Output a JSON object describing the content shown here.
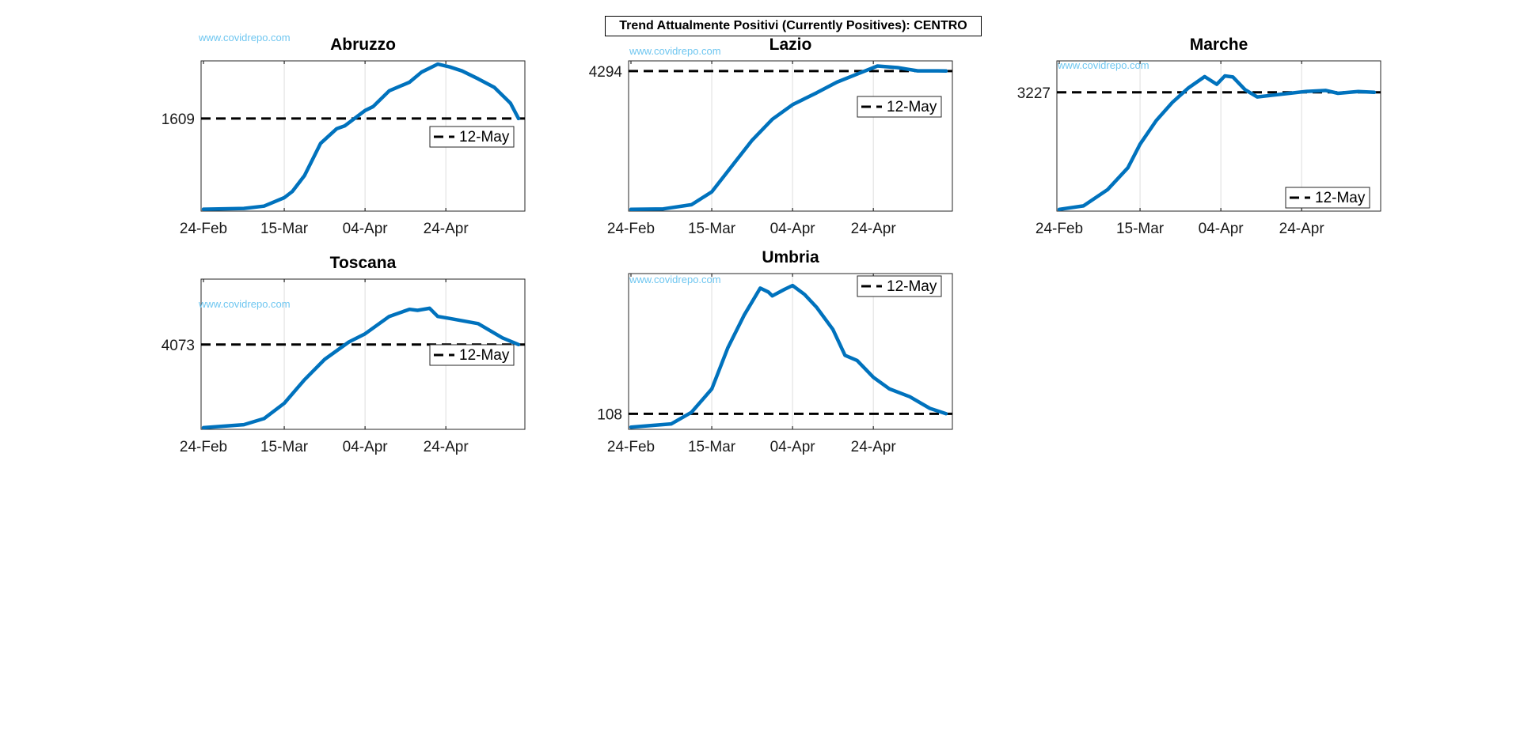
{
  "figure": {
    "suptitle": "Trend Attualmente Positivi (Currently Positives): CENTRO",
    "watermark": "www.covidrepo.com",
    "colors": {
      "line": "#0072BD",
      "reference": "#000000",
      "watermark": "#6EC6F0",
      "grid": "#DDDDDD"
    }
  },
  "chart_data": [
    {
      "type": "line",
      "title": "Abruzzo",
      "x_tick_labels": [
        "24-Feb",
        "15-Mar",
        "04-Apr",
        "24-Apr"
      ],
      "x_range": [
        "2020-02-24",
        "2020-05-12"
      ],
      "reference_value": 1609,
      "reference_label": "12-May",
      "legend_position": "right",
      "grid": "vertical",
      "ylim": [
        0,
        2600
      ],
      "series": [
        {
          "x": [
            "2020-02-24",
            "2020-03-05",
            "2020-03-10",
            "2020-03-15",
            "2020-03-17",
            "2020-03-20",
            "2020-03-24",
            "2020-03-28",
            "2020-03-30",
            "2020-04-04",
            "2020-04-06",
            "2020-04-10",
            "2020-04-15",
            "2020-04-18",
            "2020-04-22",
            "2020-04-25",
            "2020-04-28",
            "2020-05-02",
            "2020-05-06",
            "2020-05-10",
            "2020-05-12"
          ],
          "y": [
            5,
            20,
            60,
            210,
            320,
            600,
            1170,
            1430,
            1480,
            1750,
            1820,
            2100,
            2250,
            2430,
            2570,
            2520,
            2450,
            2310,
            2160,
            1880,
            1609
          ]
        }
      ]
    },
    {
      "type": "line",
      "title": "Lazio",
      "x_tick_labels": [
        "24-Feb",
        "15-Mar",
        "04-Apr",
        "24-Apr"
      ],
      "x_range": [
        "2020-02-24",
        "2020-05-12"
      ],
      "reference_value": 4294,
      "reference_label": "12-May",
      "legend_position": "right",
      "grid": "vertical",
      "ylim": [
        0,
        4560
      ],
      "series": [
        {
          "x": [
            "2020-02-24",
            "2020-03-03",
            "2020-03-10",
            "2020-03-15",
            "2020-03-20",
            "2020-03-25",
            "2020-03-30",
            "2020-04-04",
            "2020-04-10",
            "2020-04-15",
            "2020-04-20",
            "2020-04-25",
            "2020-04-30",
            "2020-05-05",
            "2020-05-10",
            "2020-05-12"
          ],
          "y": [
            5,
            20,
            150,
            550,
            1350,
            2150,
            2800,
            3250,
            3620,
            3950,
            4200,
            4450,
            4400,
            4300,
            4300,
            4294
          ]
        }
      ]
    },
    {
      "type": "line",
      "title": "Marche",
      "x_tick_labels": [
        "24-Feb",
        "15-Mar",
        "04-Apr",
        "24-Apr"
      ],
      "x_range": [
        "2020-02-24",
        "2020-05-12"
      ],
      "reference_value": 3227,
      "reference_label": "12-May",
      "legend_position": "bottom-right",
      "grid": "vertical",
      "ylim": [
        0,
        4050
      ],
      "series": [
        {
          "x": [
            "2020-02-24",
            "2020-03-01",
            "2020-03-07",
            "2020-03-12",
            "2020-03-15",
            "2020-03-19",
            "2020-03-23",
            "2020-03-27",
            "2020-03-31",
            "2020-04-03",
            "2020-04-05",
            "2020-04-07",
            "2020-04-10",
            "2020-04-13",
            "2020-04-17",
            "2020-04-21",
            "2020-04-25",
            "2020-04-30",
            "2020-05-03",
            "2020-05-08",
            "2020-05-12"
          ],
          "y": [
            5,
            100,
            550,
            1150,
            1800,
            2450,
            2950,
            3350,
            3660,
            3450,
            3680,
            3650,
            3300,
            3100,
            3150,
            3200,
            3250,
            3280,
            3200,
            3250,
            3227
          ]
        }
      ]
    },
    {
      "type": "line",
      "title": "Toscana",
      "x_tick_labels": [
        "24-Feb",
        "15-Mar",
        "04-Apr",
        "24-Apr"
      ],
      "x_range": [
        "2020-02-24",
        "2020-05-12"
      ],
      "reference_value": 4073,
      "reference_label": "12-May",
      "legend_position": "right",
      "grid": "vertical",
      "ylim": [
        0,
        7200
      ],
      "series": [
        {
          "x": [
            "2020-02-24",
            "2020-03-05",
            "2020-03-10",
            "2020-03-15",
            "2020-03-20",
            "2020-03-25",
            "2020-03-31",
            "2020-04-04",
            "2020-04-10",
            "2020-04-15",
            "2020-04-17",
            "2020-04-20",
            "2020-04-22",
            "2020-04-25",
            "2020-05-02",
            "2020-05-08",
            "2020-05-12"
          ],
          "y": [
            5,
            150,
            450,
            1200,
            2350,
            3350,
            4200,
            4600,
            5450,
            5800,
            5750,
            5850,
            5450,
            5350,
            5100,
            4400,
            4073
          ]
        }
      ]
    },
    {
      "type": "line",
      "title": "Umbria",
      "x_tick_labels": [
        "24-Feb",
        "15-Mar",
        "04-Apr",
        "24-Apr"
      ],
      "x_range": [
        "2020-02-24",
        "2020-05-12"
      ],
      "reference_value": 108,
      "reference_label": "12-May",
      "legend_position": "top-right",
      "grid": "vertical",
      "ylim": [
        0,
        1180
      ],
      "series": [
        {
          "x": [
            "2020-02-24",
            "2020-03-05",
            "2020-03-10",
            "2020-03-15",
            "2020-03-19",
            "2020-03-23",
            "2020-03-27",
            "2020-03-29",
            "2020-03-30",
            "2020-04-02",
            "2020-04-04",
            "2020-04-07",
            "2020-04-10",
            "2020-04-14",
            "2020-04-17",
            "2020-04-20",
            "2020-04-24",
            "2020-04-28",
            "2020-05-03",
            "2020-05-08",
            "2020-05-12"
          ],
          "y": [
            5,
            30,
            120,
            300,
            620,
            870,
            1080,
            1050,
            1020,
            1070,
            1100,
            1030,
            930,
            760,
            560,
            520,
            390,
            300,
            240,
            150,
            108
          ]
        }
      ]
    }
  ]
}
